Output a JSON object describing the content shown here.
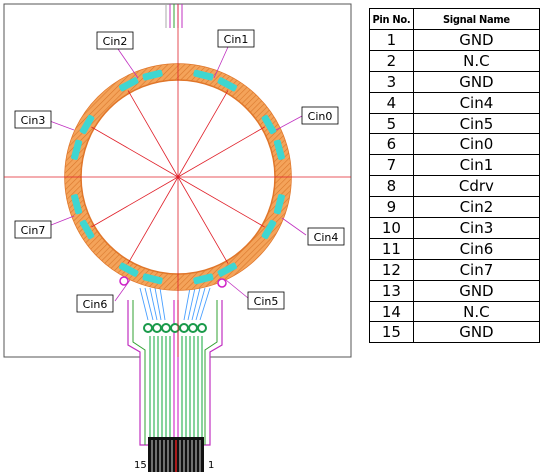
{
  "electrode_labels": [
    "Cin0",
    "Cin1",
    "Cin2",
    "Cin3",
    "Cin4",
    "Cin5",
    "Cin6",
    "Cin7"
  ],
  "connector_pins": {
    "left": "15",
    "right": "1"
  },
  "pin_table": {
    "headers": [
      "Pin No.",
      "Signal Name"
    ],
    "rows": [
      {
        "pin": "1",
        "signal": "GND"
      },
      {
        "pin": "2",
        "signal": "N.C"
      },
      {
        "pin": "3",
        "signal": "GND"
      },
      {
        "pin": "4",
        "signal": "Cin4"
      },
      {
        "pin": "5",
        "signal": "Cin5"
      },
      {
        "pin": "6",
        "signal": "Cin0"
      },
      {
        "pin": "7",
        "signal": "Cin1"
      },
      {
        "pin": "8",
        "signal": "Cdrv"
      },
      {
        "pin": "9",
        "signal": "Cin2"
      },
      {
        "pin": "10",
        "signal": "Cin3"
      },
      {
        "pin": "11",
        "signal": "Cin6"
      },
      {
        "pin": "12",
        "signal": "Cin7"
      },
      {
        "pin": "13",
        "signal": "GND"
      },
      {
        "pin": "14",
        "signal": "N.C"
      },
      {
        "pin": "15",
        "signal": "GND"
      }
    ]
  },
  "colors": {
    "ring": "#f29a4a",
    "electrode": "#3fd6d0",
    "guide_lines": "#e0202a",
    "trace_green": "#22b14c",
    "trace_magenta": "#d020c8"
  }
}
